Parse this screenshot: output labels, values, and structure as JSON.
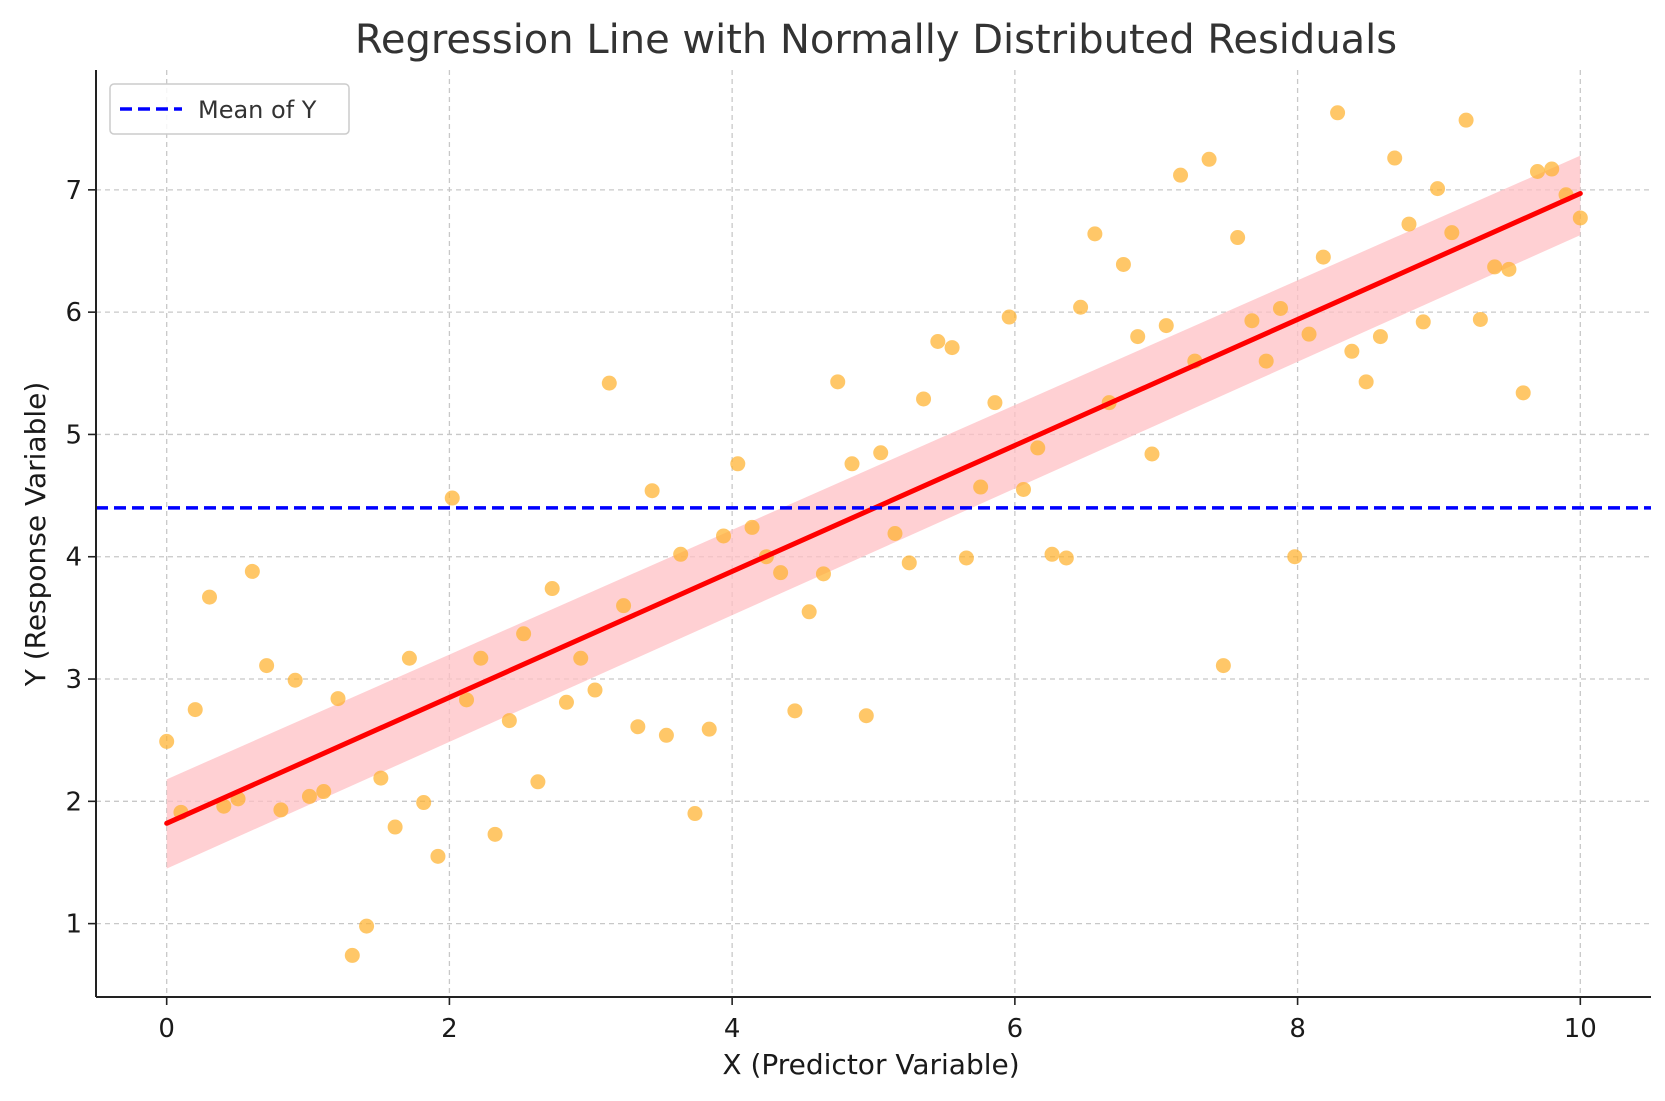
{
  "chart_data": {
    "type": "scatter",
    "title": "Regression Line with Normally Distributed Residuals",
    "xlabel": "X (Predictor Variable)",
    "ylabel": "Y (Response Variable)",
    "xlim": [
      -0.5,
      10.5
    ],
    "ylim": [
      0.4,
      7.98
    ],
    "xticks": [
      0,
      2,
      4,
      6,
      8,
      10
    ],
    "yticks": [
      1,
      2,
      3,
      4,
      5,
      6,
      7
    ],
    "grid": true,
    "legend_position": "top-left",
    "colors": {
      "points": "#FFB22E",
      "regression_line": "#FF0000",
      "confidence_band": "#FFC0C4",
      "mean_line": "#0000FF",
      "grid": "#c8c8c8"
    },
    "series": [
      {
        "type": "scatter",
        "x": [
          0.0,
          0.101,
          0.202,
          0.303,
          0.404,
          0.505,
          0.606,
          0.707,
          0.808,
          0.909,
          1.01,
          1.111,
          1.212,
          1.313,
          1.414,
          1.515,
          1.616,
          1.717,
          1.818,
          1.919,
          2.02,
          2.121,
          2.222,
          2.323,
          2.424,
          2.525,
          2.626,
          2.727,
          2.828,
          2.929,
          3.03,
          3.131,
          3.232,
          3.333,
          3.434,
          3.535,
          3.636,
          3.737,
          3.838,
          3.939,
          4.04,
          4.141,
          4.242,
          4.343,
          4.444,
          4.545,
          4.646,
          4.747,
          4.848,
          4.949,
          5.051,
          5.152,
          5.253,
          5.354,
          5.455,
          5.556,
          5.657,
          5.758,
          5.859,
          5.96,
          6.061,
          6.162,
          6.263,
          6.364,
          6.465,
          6.566,
          6.667,
          6.768,
          6.869,
          6.97,
          7.071,
          7.172,
          7.273,
          7.374,
          7.475,
          7.576,
          7.677,
          7.778,
          7.879,
          7.98,
          8.081,
          8.182,
          8.283,
          8.384,
          8.485,
          8.586,
          8.687,
          8.788,
          8.889,
          8.99,
          9.091,
          9.192,
          9.293,
          9.394,
          9.495,
          9.596,
          9.697,
          9.798,
          9.899,
          10.0
        ],
        "y": [
          2.49,
          1.91,
          2.75,
          3.67,
          1.96,
          2.02,
          3.88,
          3.11,
          1.93,
          2.99,
          2.04,
          2.08,
          2.84,
          0.74,
          0.98,
          2.19,
          1.79,
          3.17,
          1.99,
          1.55,
          4.48,
          2.83,
          3.17,
          1.73,
          2.66,
          3.37,
          2.16,
          3.74,
          2.81,
          3.17,
          2.91,
          5.42,
          3.6,
          2.61,
          4.54,
          2.54,
          4.02,
          1.9,
          2.59,
          4.17,
          4.76,
          4.24,
          4.0,
          3.87,
          2.74,
          3.55,
          3.86,
          5.43,
          4.76,
          2.7,
          4.85,
          4.19,
          3.95,
          5.29,
          5.76,
          5.71,
          3.99,
          4.57,
          5.26,
          5.96,
          4.55,
          4.89,
          4.02,
          3.99,
          6.04,
          6.64,
          5.26,
          6.39,
          5.8,
          4.84,
          5.89,
          7.12,
          5.6,
          7.25,
          3.11,
          6.61,
          5.93,
          5.6,
          6.03,
          4.0,
          5.82,
          6.45,
          7.63,
          5.68,
          5.43,
          5.8,
          7.26,
          6.72,
          5.92,
          7.01,
          6.65,
          7.57,
          5.94,
          6.37,
          6.35,
          5.34,
          7.15,
          7.17,
          6.96,
          6.77
        ]
      },
      {
        "type": "line",
        "role": "regression",
        "x": [
          0,
          10
        ],
        "y": [
          1.82,
          6.97
        ]
      },
      {
        "type": "band",
        "role": "confidence",
        "x": [
          0,
          10
        ],
        "lower": [
          1.45,
          6.63
        ],
        "upper": [
          2.18,
          7.28
        ]
      },
      {
        "type": "hline",
        "name": "Mean of Y",
        "y": 4.4
      }
    ]
  }
}
